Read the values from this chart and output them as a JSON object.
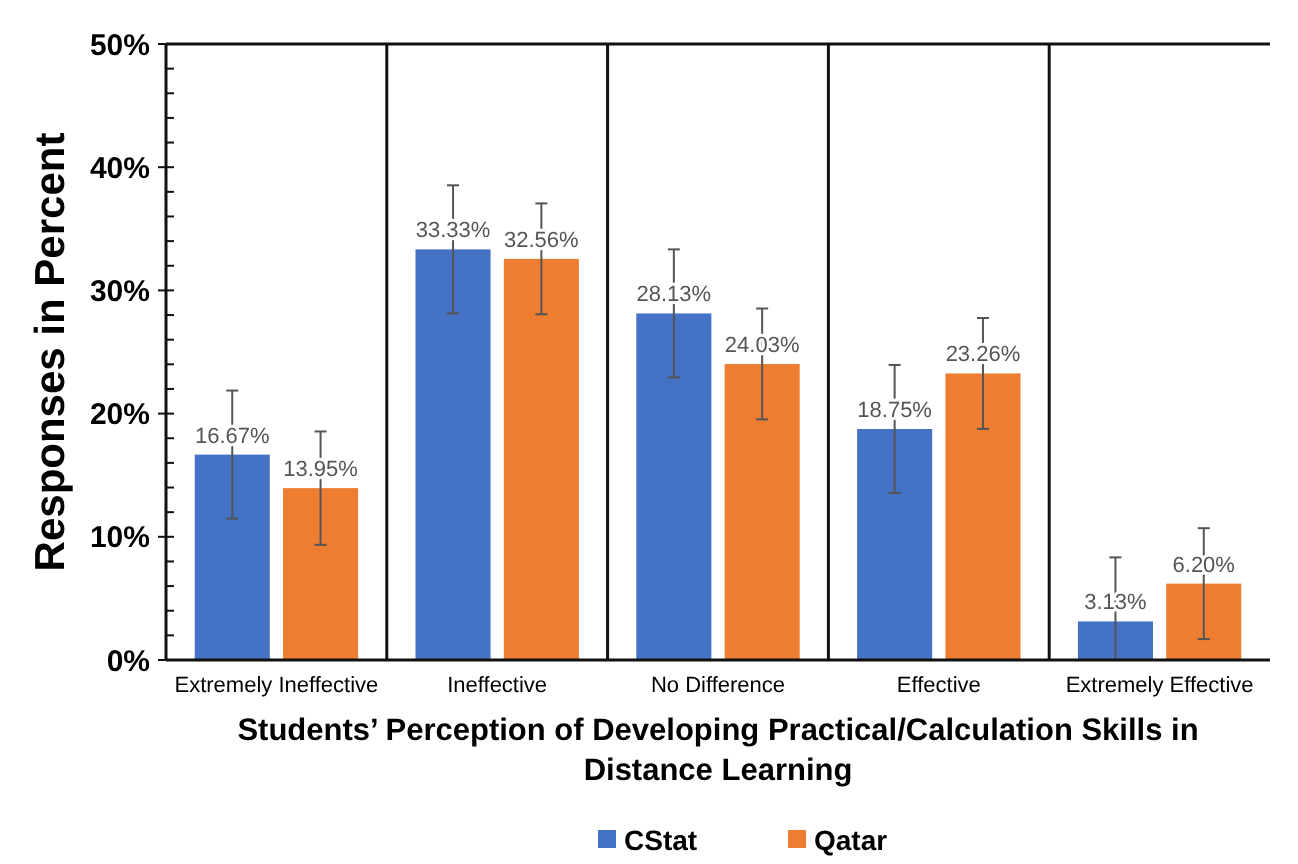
{
  "chart_data": {
    "type": "bar",
    "xlabel": "Students’ Perception of Developing Practical/Calculation Skills in Distance Learning",
    "ylabel": "Responses in Percent",
    "categories": [
      "Extremely Ineffective",
      "Ineffective",
      "No Difference",
      "Effective",
      "Extremely Effective"
    ],
    "series": [
      {
        "name": "CStat",
        "color": "#4472c4",
        "values": [
          16.67,
          33.33,
          28.13,
          18.75,
          3.13
        ],
        "value_labels": [
          "16.67%",
          "33.33%",
          "28.13%",
          "18.75%",
          "3.13%"
        ],
        "errors": [
          5.2,
          5.2,
          5.2,
          5.2,
          [
            0,
            8.33
          ]
        ]
      },
      {
        "name": "Qatar",
        "color": "#ed7d31",
        "values": [
          13.95,
          32.56,
          24.03,
          23.26,
          6.2
        ],
        "value_labels": [
          "13.95%",
          "32.56%",
          "24.03%",
          "23.26%",
          "6.20%"
        ],
        "errors": [
          4.6,
          4.5,
          4.5,
          4.5,
          4.5
        ]
      }
    ],
    "ylim": [
      0,
      50
    ],
    "yticks": [
      {
        "value": 0,
        "label": "0%"
      },
      {
        "value": 10,
        "label": "10%"
      },
      {
        "value": 20,
        "label": "20%"
      },
      {
        "value": 30,
        "label": "30%"
      },
      {
        "value": 40,
        "label": "40%"
      },
      {
        "value": 50,
        "label": "50%"
      }
    ],
    "grid": false,
    "legend": "bottom"
  }
}
